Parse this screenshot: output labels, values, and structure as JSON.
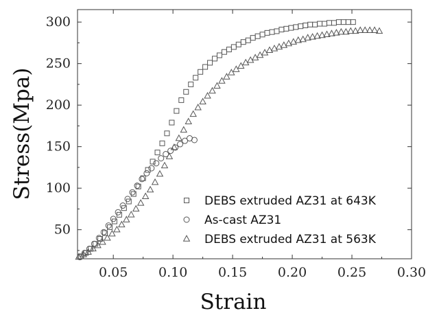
{
  "chart_data": {
    "type": "scatter",
    "title": "",
    "xlabel": "Strain",
    "ylabel": "Stress(Mpa)",
    "xlim": [
      0.02,
      0.3
    ],
    "ylim": [
      15,
      315
    ],
    "xticks": [
      0.05,
      0.1,
      0.15,
      0.2,
      0.25,
      0.3
    ],
    "xtick_labels": [
      "0.05",
      "0.10",
      "0.15",
      "0.20",
      "0.25",
      "0.30"
    ],
    "yticks": [
      50,
      100,
      150,
      200,
      250,
      300
    ],
    "ytick_labels": [
      "50",
      "100",
      "150",
      "200",
      "250",
      "300"
    ],
    "grid": false,
    "legend_position": "bottom-right",
    "series": [
      {
        "name": "DEBS extruded AZ31 at 643K",
        "marker": "square",
        "x": [
          0.023,
          0.027,
          0.031,
          0.035,
          0.039,
          0.043,
          0.047,
          0.051,
          0.055,
          0.059,
          0.063,
          0.067,
          0.071,
          0.075,
          0.079,
          0.083,
          0.087,
          0.091,
          0.095,
          0.099,
          0.103,
          0.107,
          0.111,
          0.115,
          0.119,
          0.123,
          0.127,
          0.131,
          0.135,
          0.139,
          0.143,
          0.147,
          0.151,
          0.155,
          0.159,
          0.163,
          0.167,
          0.171,
          0.175,
          0.179,
          0.183,
          0.187,
          0.191,
          0.195,
          0.199,
          0.203,
          0.207,
          0.211,
          0.215,
          0.219,
          0.223,
          0.227,
          0.231,
          0.235,
          0.239,
          0.243,
          0.247,
          0.251
        ],
        "y": [
          18,
          22,
          27,
          33,
          39,
          46,
          53,
          60,
          68,
          76,
          84,
          93,
          102,
          112,
          122,
          132,
          143,
          154,
          166,
          179,
          193,
          206,
          216,
          225,
          233,
          240,
          246,
          251,
          256,
          260,
          264,
          267,
          270,
          273,
          276,
          278,
          281,
          283,
          285,
          287,
          288,
          289,
          291,
          292,
          293,
          294,
          295,
          296,
          297,
          297,
          298,
          298,
          299,
          299,
          300,
          300,
          300,
          300
        ]
      },
      {
        "name": "As-cast AZ31",
        "marker": "circle",
        "x": [
          0.022,
          0.026,
          0.03,
          0.034,
          0.038,
          0.042,
          0.046,
          0.05,
          0.054,
          0.058,
          0.062,
          0.066,
          0.07,
          0.074,
          0.078,
          0.082,
          0.086,
          0.09,
          0.094,
          0.098,
          0.102,
          0.106,
          0.11,
          0.114,
          0.118
        ],
        "y": [
          17,
          22,
          27,
          33,
          40,
          47,
          55,
          63,
          71,
          79,
          87,
          95,
          103,
          111,
          118,
          124,
          130,
          136,
          141,
          145,
          149,
          153,
          157,
          160,
          158
        ]
      },
      {
        "name": "DEBS extruded AZ31 at 563K",
        "marker": "triangle",
        "x": [
          0.021,
          0.025,
          0.029,
          0.033,
          0.037,
          0.041,
          0.045,
          0.049,
          0.053,
          0.057,
          0.061,
          0.065,
          0.069,
          0.073,
          0.077,
          0.081,
          0.085,
          0.089,
          0.093,
          0.097,
          0.101,
          0.105,
          0.109,
          0.113,
          0.117,
          0.121,
          0.125,
          0.129,
          0.133,
          0.137,
          0.141,
          0.145,
          0.149,
          0.153,
          0.157,
          0.161,
          0.165,
          0.169,
          0.173,
          0.177,
          0.181,
          0.185,
          0.189,
          0.193,
          0.197,
          0.201,
          0.205,
          0.209,
          0.213,
          0.217,
          0.221,
          0.225,
          0.229,
          0.233,
          0.237,
          0.241,
          0.245,
          0.249,
          0.253,
          0.257,
          0.261,
          0.265,
          0.269,
          0.273
        ],
        "y": [
          17,
          20,
          23,
          27,
          31,
          35,
          40,
          45,
          50,
          56,
          62,
          68,
          75,
          82,
          90,
          98,
          107,
          117,
          127,
          138,
          149,
          160,
          170,
          180,
          189,
          197,
          204,
          211,
          217,
          223,
          229,
          234,
          239,
          243,
          247,
          251,
          254,
          257,
          260,
          263,
          266,
          268,
          270,
          272,
          274,
          276,
          278,
          279,
          281,
          282,
          283,
          284,
          285,
          286,
          287,
          288,
          288,
          289,
          289,
          290,
          290,
          290,
          290,
          289
        ]
      }
    ]
  }
}
